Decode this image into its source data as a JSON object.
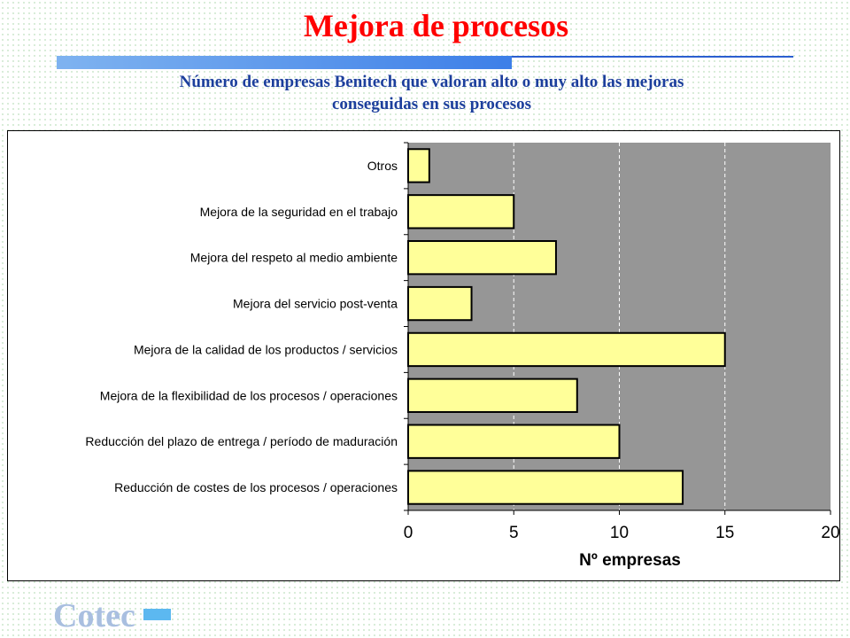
{
  "slide": {
    "title": "Mejora de procesos",
    "subtitle_line1": "Número de empresas Benitech que valoran alto o muy alto las mejoras",
    "subtitle_line2": "conseguidas en sus procesos",
    "logo_text": "Cotec"
  },
  "colors": {
    "title": "#ff0000",
    "subtitle": "#1c3f9c",
    "plot_background": "#969696",
    "bar_fill": "#ffff99",
    "logo": "#a9bfe0",
    "logo_mark": "#5cb8f0"
  },
  "chart_data": {
    "type": "bar",
    "orientation": "horizontal",
    "categories": [
      "Otros",
      "Mejora de la seguridad en el trabajo",
      "Mejora del respeto al medio ambiente",
      "Mejora del servicio post-venta",
      "Mejora de la calidad de los productos / servicios",
      "Mejora de la flexibilidad de los procesos / operaciones",
      "Reducción del plazo de entrega / período de maduración",
      "Reducción de costes de los procesos / operaciones"
    ],
    "values": [
      1,
      5,
      7,
      3,
      15,
      8,
      10,
      13
    ],
    "xlabel": "Nº empresas",
    "ylabel": "",
    "xlim": [
      0,
      20
    ],
    "xticks": [
      0,
      5,
      10,
      15,
      20
    ],
    "grid": true,
    "legend": "none"
  }
}
